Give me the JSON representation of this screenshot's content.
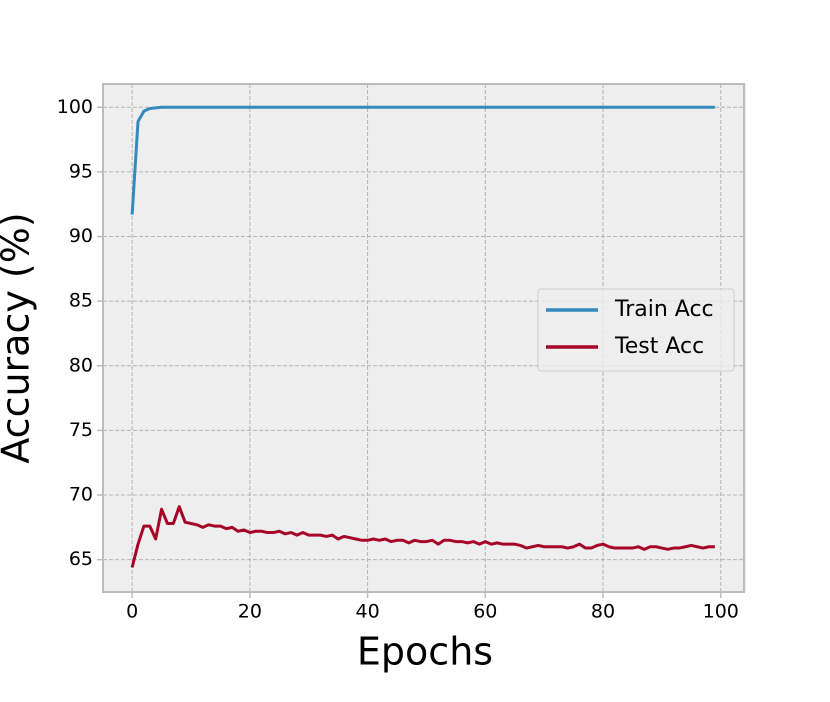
{
  "chart_data": {
    "type": "line",
    "x_label": "Epochs",
    "y_label": "Accuracy (%)",
    "x": [
      0,
      1,
      2,
      3,
      4,
      5,
      6,
      7,
      8,
      9,
      10,
      11,
      12,
      13,
      14,
      15,
      16,
      17,
      18,
      19,
      20,
      21,
      22,
      23,
      24,
      25,
      26,
      27,
      28,
      29,
      30,
      31,
      32,
      33,
      34,
      35,
      36,
      37,
      38,
      39,
      40,
      41,
      42,
      43,
      44,
      45,
      46,
      47,
      48,
      49,
      50,
      51,
      52,
      53,
      54,
      55,
      56,
      57,
      58,
      59,
      60,
      61,
      62,
      63,
      64,
      65,
      66,
      67,
      68,
      69,
      70,
      71,
      72,
      73,
      74,
      75,
      76,
      77,
      78,
      79,
      80,
      81,
      82,
      83,
      84,
      85,
      86,
      87,
      88,
      89,
      90,
      91,
      92,
      93,
      94,
      95,
      96,
      97,
      98,
      99
    ],
    "series": [
      {
        "name": "Train Acc",
        "color": "#348ABD",
        "values": [
          91.7,
          98.9,
          99.7,
          99.9,
          99.95,
          100,
          100,
          100,
          100,
          100,
          100,
          100,
          100,
          100,
          100,
          100,
          100,
          100,
          100,
          100,
          100,
          100,
          100,
          100,
          100,
          100,
          100,
          100,
          100,
          100,
          100,
          100,
          100,
          100,
          100,
          100,
          100,
          100,
          100,
          100,
          100,
          100,
          100,
          100,
          100,
          100,
          100,
          100,
          100,
          100,
          100,
          100,
          100,
          100,
          100,
          100,
          100,
          100,
          100,
          100,
          100,
          100,
          100,
          100,
          100,
          100,
          100,
          100,
          100,
          100,
          100,
          100,
          100,
          100,
          100,
          100,
          100,
          100,
          100,
          100,
          100,
          100,
          100,
          100,
          100,
          100,
          100,
          100,
          100,
          100,
          100,
          100,
          100,
          100,
          100,
          100,
          100,
          100,
          100,
          100
        ]
      },
      {
        "name": "Test Acc",
        "color": "#A60628",
        "values": [
          64.4,
          66.2,
          67.6,
          67.6,
          66.6,
          68.9,
          67.8,
          67.8,
          69.1,
          67.9,
          67.8,
          67.7,
          67.5,
          67.7,
          67.6,
          67.6,
          67.4,
          67.5,
          67.2,
          67.3,
          67.1,
          67.2,
          67.2,
          67.1,
          67.1,
          67.2,
          67.0,
          67.1,
          66.9,
          67.1,
          66.9,
          66.9,
          66.9,
          66.8,
          66.9,
          66.6,
          66.8,
          66.7,
          66.6,
          66.5,
          66.5,
          66.6,
          66.5,
          66.6,
          66.4,
          66.5,
          66.5,
          66.3,
          66.5,
          66.4,
          66.4,
          66.5,
          66.2,
          66.5,
          66.5,
          66.4,
          66.4,
          66.3,
          66.4,
          66.2,
          66.4,
          66.2,
          66.3,
          66.2,
          66.2,
          66.2,
          66.1,
          65.9,
          66.0,
          66.1,
          66.0,
          66.0,
          66.0,
          66.0,
          65.9,
          66.0,
          66.2,
          65.9,
          65.9,
          66.1,
          66.2,
          66.0,
          65.9,
          65.9,
          65.9,
          65.9,
          66.0,
          65.8,
          66.0,
          66.0,
          65.9,
          65.8,
          65.9,
          65.9,
          66.0,
          66.1,
          66.0,
          65.9,
          66.0,
          66.0
        ]
      }
    ],
    "xlim": [
      -4.95,
      103.95
    ],
    "ylim": [
      62.5,
      101.8
    ],
    "xticks": [
      0,
      20,
      40,
      60,
      80,
      100
    ],
    "yticks": [
      65,
      70,
      75,
      80,
      85,
      90,
      95,
      100
    ],
    "grid": true,
    "legend": "center right"
  }
}
